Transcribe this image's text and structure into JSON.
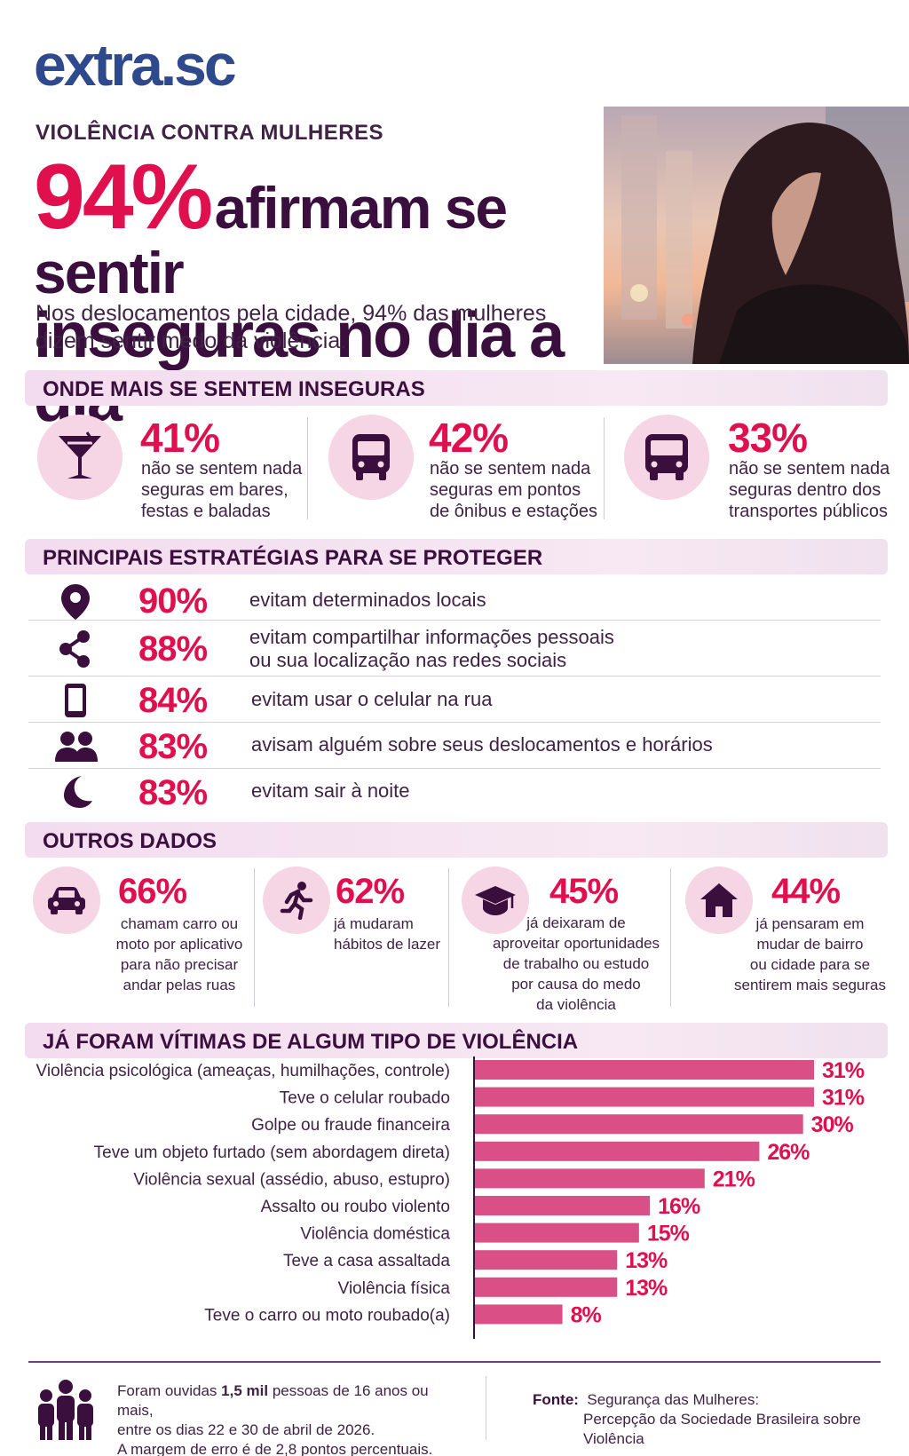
{
  "brand": {
    "logo_text": "extra.sc"
  },
  "header": {
    "kicker": "VIOLÊNCIA CONTRA MULHERES",
    "headline_pct": "94%",
    "headline_line1": "afirmam se sentir",
    "headline_line2": "inseguras no dia a dia",
    "lede": "Nos deslocamentos pela cidade, 94% das mulheres dizem sentir medo da violência."
  },
  "colors": {
    "accent": "#e0104f",
    "dark": "#3a0f3d",
    "bar": "#d94f86",
    "band": "#f3dcef"
  },
  "unsafe_places": {
    "title": "ONDE MAIS SE SENTEM INSEGURAS",
    "items": [
      {
        "icon": "cocktail-icon",
        "pct": "41%",
        "l1": "não se sentem nada",
        "l2": "seguras em bares,",
        "l3": "festas e baladas"
      },
      {
        "icon": "bus-front-icon",
        "pct": "42%",
        "l1": "não se sentem nada",
        "l2": "seguras em pontos",
        "l3": "de ônibus e estações"
      },
      {
        "icon": "bus-icon",
        "pct": "33%",
        "l1": "não se sentem nada",
        "l2": "seguras dentro dos",
        "l3": "transportes públicos"
      }
    ]
  },
  "strategies": {
    "title": "PRINCIPAIS ESTRATÉGIAS PARA SE PROTEGER",
    "items": [
      {
        "icon": "location-pin-icon",
        "pct": "90%",
        "l1": "evitam determinados locais",
        "l2": ""
      },
      {
        "icon": "share-icon",
        "pct": "88%",
        "l1": "evitam compartilhar informações pessoais",
        "l2": "ou sua localização nas redes sociais"
      },
      {
        "icon": "smartphone-icon",
        "pct": "84%",
        "l1": "evitam usar o celular na rua",
        "l2": ""
      },
      {
        "icon": "people-icon",
        "pct": "83%",
        "l1": "avisam alguém sobre seus deslocamentos e horários",
        "l2": ""
      },
      {
        "icon": "moon-icon",
        "pct": "83%",
        "l1": "evitam sair à noite",
        "l2": ""
      }
    ]
  },
  "other_data": {
    "title": "OUTROS DADOS",
    "items": [
      {
        "icon": "car-icon",
        "pct": "66%",
        "lines": [
          "chamam carro ou",
          "moto por aplicativo",
          "para não precisar",
          "andar pelas ruas"
        ]
      },
      {
        "icon": "running-person-icon",
        "pct": "62%",
        "lines": [
          "já mudaram",
          "hábitos de lazer"
        ]
      },
      {
        "icon": "graduation-cap-icon",
        "pct": "45%",
        "lines": [
          "já deixaram de",
          "aproveitar oportunidades",
          "de trabalho ou estudo",
          "por causa do medo",
          "da violência"
        ]
      },
      {
        "icon": "house-icon",
        "pct": "44%",
        "lines": [
          "já pensaram em",
          "mudar de bairro",
          "ou cidade para se",
          "sentirem mais seguras"
        ]
      }
    ]
  },
  "victims": {
    "title": "JÁ FORAM VÍTIMAS DE ALGUM TIPO DE VIOLÊNCIA"
  },
  "chart_data": {
    "type": "bar",
    "orientation": "horizontal",
    "title": "JÁ FORAM VÍTIMAS DE ALGUM TIPO DE VIOLÊNCIA",
    "categories": [
      "Violência psicológica (ameaças, humilhações, controle)",
      "Teve o celular roubado",
      "Golpe ou fraude financeira",
      "Teve um objeto furtado (sem abordagem direta)",
      "Violência sexual (assédio, abuso, estupro)",
      "Assalto ou roubo violento",
      "Violência doméstica",
      "Teve a casa assaltada",
      "Violência física",
      "Teve o carro ou moto roubado(a)"
    ],
    "values": [
      31,
      31,
      30,
      26,
      21,
      16,
      15,
      13,
      13,
      8
    ],
    "labels": [
      "31%",
      "31%",
      "30%",
      "26%",
      "21%",
      "16%",
      "15%",
      "13%",
      "13%",
      "8%"
    ],
    "unit": "%",
    "xlim": [
      0,
      31
    ],
    "grid": false,
    "legend": "none"
  },
  "footer": {
    "note_pre": "Foram ouvidas ",
    "note_bold": "1,5 mil",
    "note_post": " pessoas de 16 anos ou mais,",
    "note_l2": "entre os dias 22 e 30 de abril de 2026.",
    "note_l3": "A margem de erro é de 2,8 pontos percentuais.",
    "source_label": "Fonte:",
    "source_l1": "Segurança das Mulheres:",
    "source_l2": "Percepção da Sociedade Brasileira sobre Violência",
    "icon": "group-icon"
  }
}
